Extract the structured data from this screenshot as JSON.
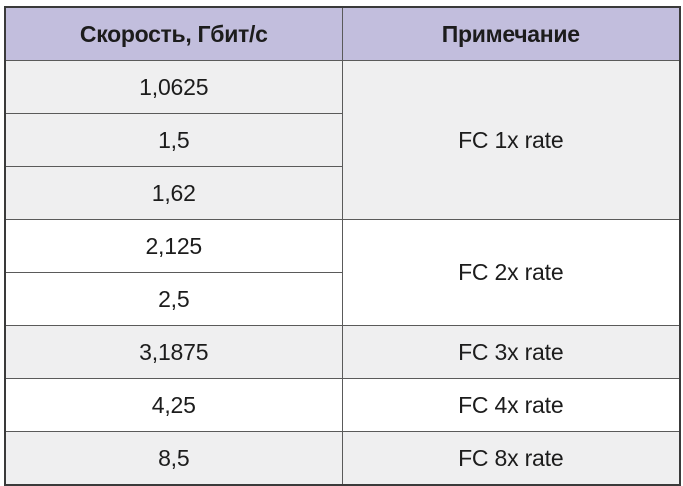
{
  "table": {
    "headers": {
      "speed": "Скорость, Гбит/с",
      "note": "Примечание"
    },
    "rows": [
      {
        "speed": "1,0625"
      },
      {
        "speed": "1,5"
      },
      {
        "speed": "1,62"
      },
      {
        "speed": "2,125"
      },
      {
        "speed": "2,5"
      },
      {
        "speed": "3,1875"
      },
      {
        "speed": "4,25"
      },
      {
        "speed": "8,5"
      }
    ],
    "notes": [
      {
        "label": "FC 1x rate",
        "rows_spanned": 3
      },
      {
        "label": "FC 2x rate",
        "rows_spanned": 2
      },
      {
        "label": "FC 3x rate",
        "rows_spanned": 1
      },
      {
        "label": "FC 4x rate",
        "rows_spanned": 1
      },
      {
        "label": "FC 8x rate",
        "rows_spanned": 1
      }
    ]
  },
  "colors": {
    "header_bg": "#c2bedd",
    "row_shaded_bg": "#efeff0",
    "row_plain_bg": "#ffffff",
    "border": "#5a5a5a",
    "text": "#1c1c1c"
  }
}
